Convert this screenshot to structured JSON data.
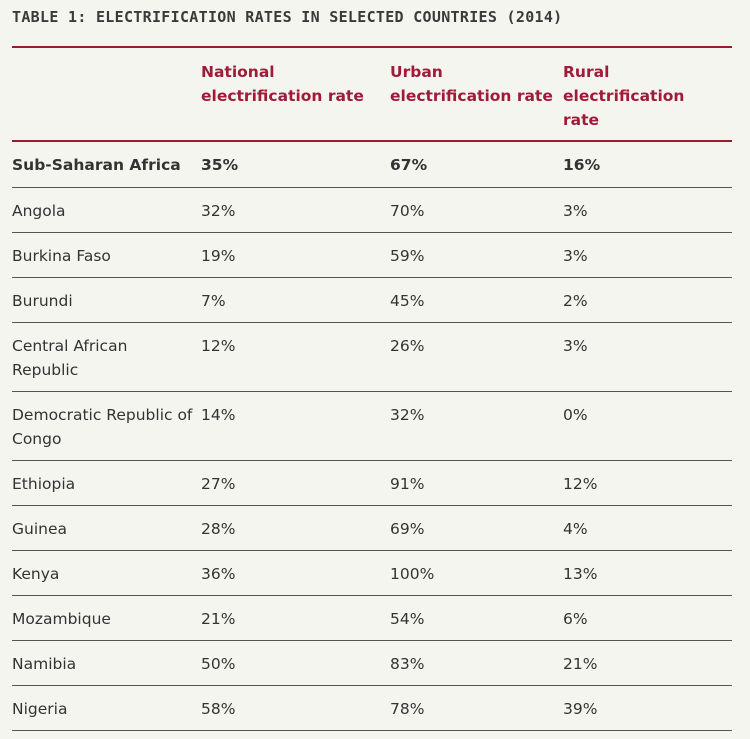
{
  "title": "TABLE 1: ELECTRIFICATION RATES IN SELECTED COUNTRIES (2014)",
  "headers": {
    "national": [
      "National",
      "electrification rate"
    ],
    "urban": [
      "Urban",
      "electrification rate"
    ],
    "rural": [
      "Rural",
      "electrification",
      "rate"
    ]
  },
  "rows": [
    {
      "country": "Sub-Saharan Africa",
      "national": "35%",
      "urban": "67%",
      "rural": "16%"
    },
    {
      "country": "Angola",
      "national": "32%",
      "urban": "70%",
      "rural": "3%"
    },
    {
      "country": "Burkina Faso",
      "national": "19%",
      "urban": "59%",
      "rural": "3%"
    },
    {
      "country": "Burundi",
      "national": "7%",
      "urban": "45%",
      "rural": "2%"
    },
    {
      "country": "Central African Republic",
      "national": "12%",
      "urban": "26%",
      "rural": "3%"
    },
    {
      "country": "Democratic Republic of Congo",
      "national": "14%",
      "urban": "32%",
      "rural": "0%"
    },
    {
      "country": "Ethiopia",
      "national": "27%",
      "urban": "91%",
      "rural": "12%"
    },
    {
      "country": "Guinea",
      "national": "28%",
      "urban": "69%",
      "rural": "4%"
    },
    {
      "country": "Kenya",
      "national": "36%",
      "urban": "100%",
      "rural": "13%"
    },
    {
      "country": "Mozambique",
      "national": "21%",
      "urban": "54%",
      "rural": "6%"
    },
    {
      "country": "Namibia",
      "national": "50%",
      "urban": "83%",
      "rural": "21%"
    },
    {
      "country": "Nigeria",
      "national": "58%",
      "urban": "78%",
      "rural": "39%"
    }
  ]
}
